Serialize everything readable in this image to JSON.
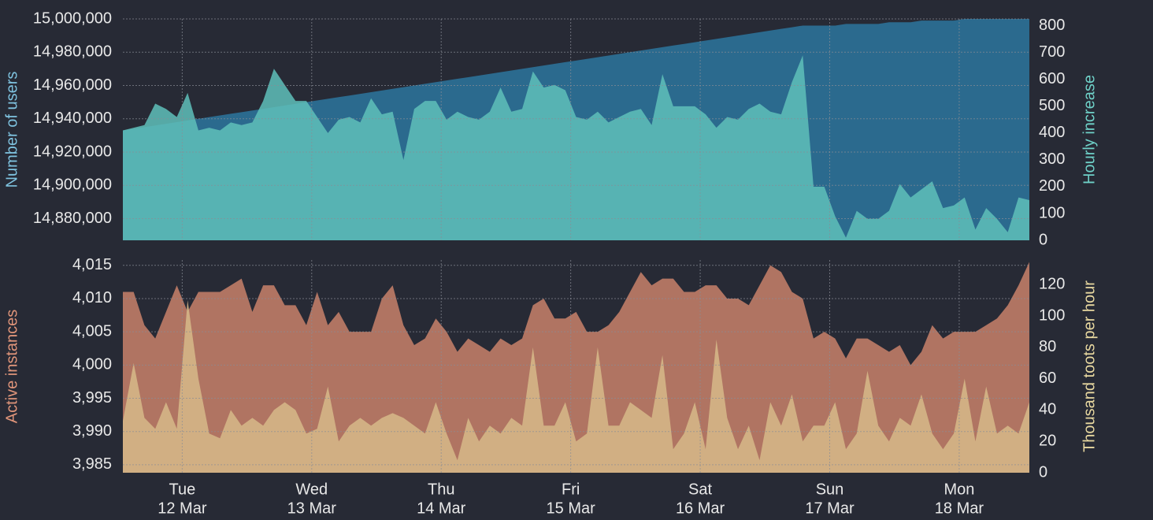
{
  "chart_data": [
    {
      "type": "area",
      "ylabel": "Number of users",
      "y2label": "Hourly increase",
      "xlim": [
        0,
        84
      ],
      "xticks": [
        5.5,
        17.5,
        29.5,
        41.5,
        53.5,
        65.5,
        77.5
      ],
      "ylim": [
        14867000,
        15000000
      ],
      "yticks": [
        {
          "value": 14880000,
          "label": "14,880,000"
        },
        {
          "value": 14900000,
          "label": "14,900,000"
        },
        {
          "value": 14920000,
          "label": "14,920,000"
        },
        {
          "value": 14940000,
          "label": "14,940,000"
        },
        {
          "value": 14960000,
          "label": "14,960,000"
        },
        {
          "value": 14980000,
          "label": "14,980,000"
        },
        {
          "value": 15000000,
          "label": "15,000,000"
        }
      ],
      "y2lim": [
        0,
        826
      ],
      "y2ticks": [
        0,
        100,
        200,
        300,
        400,
        500,
        600,
        700,
        800
      ],
      "grid": true,
      "series": [
        {
          "color": "#2b6a8e",
          "axis": "y",
          "values": [
            14933000,
            14934000,
            14935000,
            14936000,
            14937000,
            14938000,
            14939000,
            14940000,
            14941000,
            14942000,
            14943000,
            14944000,
            14945000,
            14946000,
            14947000,
            14948000,
            14949000,
            14950000,
            14951000,
            14952000,
            14953000,
            14954000,
            14955000,
            14956000,
            14957000,
            14958000,
            14959000,
            14960000,
            14961000,
            14962000,
            14963000,
            14964000,
            14965000,
            14966000,
            14967000,
            14968000,
            14969000,
            14970000,
            14971000,
            14972000,
            14973000,
            14974000,
            14975000,
            14976000,
            14977000,
            14978000,
            14979000,
            14980000,
            14981000,
            14982000,
            14983000,
            14984000,
            14985000,
            14986000,
            14987000,
            14988000,
            14989000,
            14990000,
            14991000,
            14992000,
            14993000,
            14994000,
            14995000,
            14996000,
            14996000,
            14996000,
            14996000,
            14997000,
            14997000,
            14997000,
            14997000,
            14998000,
            14998000,
            14998000,
            14999000,
            14999000,
            14999000,
            14999000,
            15000000,
            15000000,
            15000000,
            15000000,
            15000000,
            15000000,
            15000000
          ]
        },
        {
          "color": "#5fc0ba",
          "axis": "y2",
          "values": [
            410,
            420,
            430,
            510,
            490,
            460,
            550,
            410,
            420,
            410,
            440,
            430,
            440,
            520,
            640,
            580,
            520,
            520,
            460,
            400,
            450,
            460,
            440,
            530,
            470,
            480,
            300,
            490,
            520,
            520,
            450,
            480,
            460,
            450,
            480,
            570,
            480,
            490,
            630,
            570,
            580,
            560,
            460,
            450,
            480,
            440,
            460,
            480,
            490,
            430,
            620,
            500,
            500,
            500,
            470,
            420,
            460,
            450,
            490,
            510,
            480,
            470,
            590,
            690,
            200,
            200,
            90,
            10,
            110,
            80,
            80,
            110,
            210,
            160,
            190,
            220,
            120,
            130,
            160,
            40,
            120,
            80,
            30,
            160,
            150
          ]
        }
      ]
    },
    {
      "type": "area",
      "ylabel": "Active instances",
      "y2label": "Thousand toots per hour",
      "xlim": [
        0,
        84
      ],
      "xticks": [
        {
          "value": 5.5,
          "label": [
            "Tue",
            "12 Mar"
          ]
        },
        {
          "value": 17.5,
          "label": [
            "Wed",
            "13 Mar"
          ]
        },
        {
          "value": 29.5,
          "label": [
            "Thu",
            "14 Mar"
          ]
        },
        {
          "value": 41.5,
          "label": [
            "Fri",
            "15 Mar"
          ]
        },
        {
          "value": 53.5,
          "label": [
            "Sat",
            "16 Mar"
          ]
        },
        {
          "value": 65.5,
          "label": [
            "Sun",
            "17 Mar"
          ]
        },
        {
          "value": 77.5,
          "label": [
            "Mon",
            "18 Mar"
          ]
        }
      ],
      "ylim": [
        3983.8,
        4015.8
      ],
      "yticks": [
        {
          "value": 3985,
          "label": "3,985"
        },
        {
          "value": 3990,
          "label": "3,990"
        },
        {
          "value": 3995,
          "label": "3,995"
        },
        {
          "value": 4000,
          "label": "4,000"
        },
        {
          "value": 4005,
          "label": "4,005"
        },
        {
          "value": 4010,
          "label": "4,010"
        },
        {
          "value": 4015,
          "label": "4,015"
        }
      ],
      "y2lim": [
        0,
        135.7
      ],
      "y2ticks": [
        0,
        20,
        40,
        60,
        80,
        100,
        120
      ],
      "grid": true,
      "series": [
        {
          "color": "#b07462",
          "axis": "y",
          "values": [
            4011,
            4011,
            4006,
            4004,
            4008,
            4012,
            4008,
            4011,
            4011,
            4011,
            4012,
            4013,
            4008,
            4012,
            4012,
            4009,
            4009,
            4006,
            4011,
            4006,
            4008,
            4005,
            4005,
            4005,
            4010,
            4012,
            4006,
            4003,
            4004,
            4007,
            4005,
            4002,
            4004,
            4003,
            4002,
            4004,
            4003,
            4004,
            4009,
            4010,
            4007,
            4007,
            4008,
            4005,
            4005,
            4006,
            4008,
            4011,
            4014,
            4012,
            4013,
            4013,
            4011,
            4011,
            4012,
            4012,
            4010,
            4010,
            4009,
            4012,
            4015,
            4014,
            4011,
            4010,
            4004,
            4005,
            4004,
            4001,
            4004,
            4004,
            4003,
            4002,
            4003,
            4000,
            4002,
            4006,
            4004,
            4005,
            4005,
            4005,
            4006,
            4007,
            4009,
            4012,
            4015.5
          ]
        },
        {
          "color": "#d3b285",
          "axis": "y2",
          "values": [
            33,
            70,
            35,
            28,
            45,
            28,
            110,
            60,
            25,
            22,
            40,
            30,
            35,
            30,
            40,
            45,
            40,
            25,
            28,
            55,
            20,
            30,
            35,
            30,
            35,
            38,
            35,
            30,
            25,
            45,
            25,
            8,
            35,
            20,
            30,
            25,
            35,
            30,
            80,
            30,
            30,
            45,
            20,
            25,
            80,
            30,
            30,
            45,
            40,
            35,
            75,
            15,
            25,
            45,
            15,
            85,
            35,
            15,
            30,
            8,
            45,
            30,
            50,
            20,
            30,
            30,
            45,
            15,
            25,
            65,
            30,
            20,
            35,
            30,
            50,
            25,
            15,
            25,
            60,
            20,
            55,
            25,
            30,
            25,
            45
          ]
        }
      ]
    }
  ]
}
